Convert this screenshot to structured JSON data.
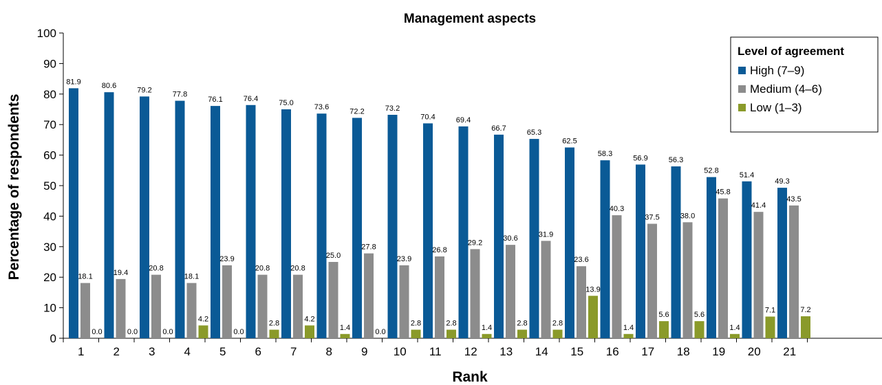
{
  "chart_data": {
    "type": "bar",
    "title": "Management aspects",
    "xlabel": "Rank",
    "ylabel": "Percentage of respondents",
    "ylim": [
      0,
      100
    ],
    "yticks": [
      0,
      10,
      20,
      30,
      40,
      50,
      60,
      70,
      80,
      90,
      100
    ],
    "categories": [
      "1",
      "2",
      "3",
      "4",
      "5",
      "6",
      "7",
      "8",
      "9",
      "10",
      "11",
      "12",
      "13",
      "14",
      "15",
      "16",
      "17",
      "18",
      "19",
      "20",
      "21"
    ],
    "legend": {
      "title": "Level of agreement",
      "placement": "top-right"
    },
    "series": [
      {
        "name": "High (7–9)",
        "color": "#0a5a96",
        "values": [
          81.9,
          80.6,
          79.2,
          77.8,
          76.1,
          76.4,
          75.0,
          73.6,
          72.2,
          73.2,
          70.4,
          69.4,
          66.7,
          65.3,
          62.5,
          58.3,
          56.9,
          56.3,
          52.8,
          51.4,
          49.3
        ],
        "labels": [
          "81.9",
          "80.6",
          "79.2",
          "77.8",
          "76.1",
          "76.4",
          "75.0",
          "73.6",
          "72.2",
          "73.2",
          "70.4",
          "69.4",
          "66.7",
          "65.3",
          "62.5",
          "58.3",
          "56.9",
          "56.3",
          "52.8",
          "51.4",
          "49.3"
        ]
      },
      {
        "name": "Medium (4–6)",
        "color": "#8c8c8c",
        "values": [
          18.1,
          19.4,
          20.8,
          18.1,
          23.9,
          20.8,
          20.8,
          25.0,
          27.8,
          23.9,
          26.8,
          29.2,
          30.6,
          31.9,
          23.6,
          40.3,
          37.5,
          38.0,
          45.8,
          41.4,
          43.5
        ],
        "labels": [
          "18.1",
          "19.4",
          "20.8",
          "18.1",
          "23.9",
          "20.8",
          "20.8",
          "25.0",
          "27.8",
          "23.9",
          "26.8",
          "29.2",
          "30.6",
          "31.9",
          "23.6",
          "40.3",
          "37.5",
          "38.0",
          "45.8",
          "41.4",
          "43.5"
        ]
      },
      {
        "name": "Low (1–3)",
        "color": "#8a9a2a",
        "values": [
          0.0,
          0.0,
          0.0,
          4.2,
          0.0,
          2.8,
          4.2,
          1.4,
          0.0,
          2.8,
          2.8,
          1.4,
          2.8,
          2.8,
          13.9,
          1.4,
          5.6,
          5.6,
          1.4,
          7.1,
          7.2
        ],
        "labels": [
          "0.0",
          "0.0",
          "0.0",
          "4.2",
          "0.0",
          "2.8",
          "4.2",
          "1.4",
          "0.0",
          "2.8",
          "2.8",
          "1.4",
          "2.8",
          "2.8",
          "13.9",
          "1.4",
          "5.6",
          "5.6",
          "1.4",
          "7.1",
          "7.2"
        ]
      }
    ]
  }
}
